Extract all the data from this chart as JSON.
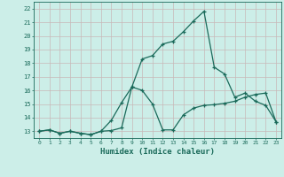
{
  "xlabel": "Humidex (Indice chaleur)",
  "background_color": "#cceee8",
  "grid_color": "#c8b8b8",
  "line_color": "#1a6a5a",
  "xlim": [
    -0.5,
    23.5
  ],
  "ylim": [
    12.5,
    22.5
  ],
  "yticks": [
    13,
    14,
    15,
    16,
    17,
    18,
    19,
    20,
    21,
    22
  ],
  "xticks": [
    0,
    1,
    2,
    3,
    4,
    5,
    6,
    7,
    8,
    9,
    10,
    11,
    12,
    13,
    14,
    15,
    16,
    17,
    18,
    19,
    20,
    21,
    22,
    23
  ],
  "series": [
    {
      "x": [
        0,
        1,
        2,
        3,
        4,
        5,
        6,
        7,
        8,
        9,
        10,
        11,
        12,
        13,
        14,
        15,
        16,
        17,
        18,
        19,
        20,
        21,
        22,
        23
      ],
      "y": [
        13.0,
        13.1,
        12.85,
        13.0,
        12.85,
        12.75,
        13.0,
        13.05,
        13.25,
        16.25,
        16.0,
        15.0,
        13.1,
        13.1,
        14.2,
        14.7,
        14.9,
        14.95,
        15.05,
        15.2,
        15.5,
        15.7,
        15.8,
        13.7
      ]
    },
    {
      "x": [
        0,
        1,
        2,
        3,
        4,
        5,
        6,
        7,
        8,
        9,
        10,
        11,
        12,
        13,
        14,
        15,
        16,
        17,
        18,
        19,
        20,
        21,
        22,
        23
      ],
      "y": [
        13.0,
        13.1,
        12.85,
        13.0,
        12.85,
        12.75,
        13.0,
        13.8,
        15.1,
        16.25,
        18.3,
        18.55,
        19.4,
        19.6,
        20.3,
        21.1,
        21.8,
        17.7,
        17.2,
        15.5,
        15.8,
        15.2,
        14.9,
        13.7
      ]
    }
  ]
}
